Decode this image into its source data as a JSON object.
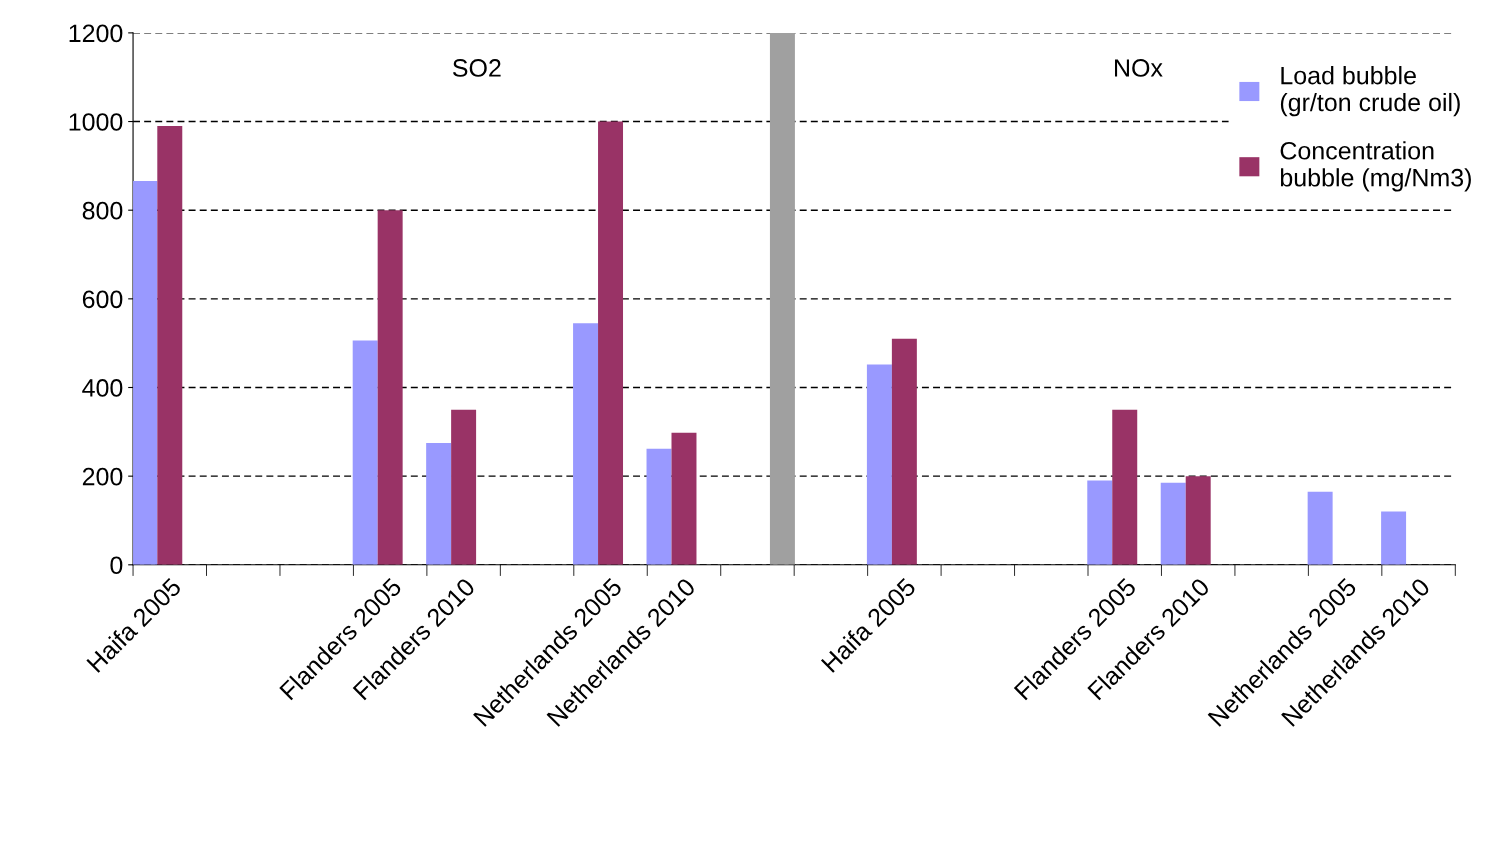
{
  "chart_data": {
    "type": "bar",
    "categories": [
      "Haifa 2005",
      null,
      null,
      "Flanders 2005",
      "Flanders 2010",
      null,
      "Netherlands 2005",
      "Netherlands 2010",
      null,
      null,
      "Haifa 2005",
      null,
      null,
      "Flanders 2005",
      "Flanders 2010",
      null,
      "Netherlands 2005",
      "Netherlands 2010"
    ],
    "series": [
      {
        "name": "Load bubble\n(gr/ton crude oil)",
        "color": "#9999ff",
        "values": [
          866,
          null,
          null,
          506,
          275,
          null,
          545,
          262,
          null,
          null,
          452,
          null,
          null,
          190,
          185,
          null,
          165,
          120
        ]
      },
      {
        "name": "Concentration\nbubble (mg/Nm3)",
        "color": "#993366",
        "values": [
          990,
          null,
          null,
          800,
          350,
          null,
          1000,
          298,
          null,
          null,
          510,
          null,
          null,
          350,
          200,
          null,
          null,
          null
        ]
      },
      {
        "color": "#a0a0a0",
        "values": [
          null,
          null,
          null,
          null,
          null,
          null,
          null,
          null,
          1200,
          null,
          null,
          null,
          null,
          null,
          null,
          null,
          null,
          null
        ]
      }
    ],
    "annotations": [
      "SO2",
      "NOx"
    ],
    "ylim": [
      0,
      1200
    ],
    "yticks": [
      0,
      200,
      400,
      600,
      800,
      1000,
      1200
    ],
    "grid": "y",
    "legend": "top right"
  }
}
